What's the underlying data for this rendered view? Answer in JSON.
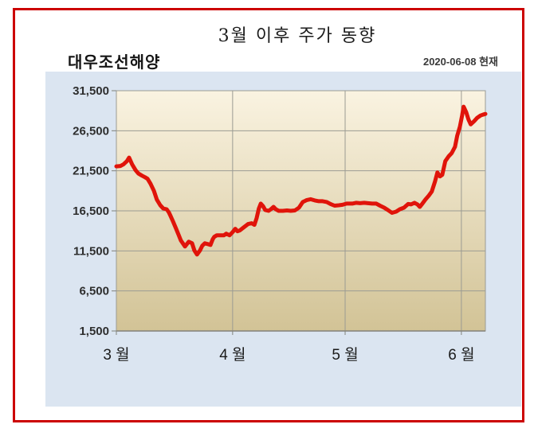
{
  "frame": {
    "border_color": "#cc0000"
  },
  "header": {
    "title": "3월 이후 주가 동향",
    "company": "대우조선해양",
    "as_of": "2020-06-08 현재"
  },
  "chart_data": {
    "type": "line",
    "title": "3월 이후 주가 동향",
    "series_name": "대우조선해양",
    "as_of_label": "2020-06-08 현재",
    "grid": true,
    "legend": "none",
    "colors": {
      "line": "#e0140a",
      "panel_bg": "#dbe5f1",
      "plot_bg_top": "#faf3e1",
      "plot_bg_bottom": "#d2c396",
      "gridline": "#9b9b93",
      "axis": "#82827a",
      "tick_text": "#2e2e2e",
      "month_text": "#1a1a1a"
    },
    "y_axis": {
      "min": 1500,
      "max": 31500,
      "tick_step": 5000,
      "ticks": [
        31500,
        26500,
        21500,
        16500,
        11500,
        6500,
        1500
      ]
    },
    "x_axis": {
      "unit": "days since 2020-03-01",
      "min": 0,
      "max": 98.4,
      "month_ticks": [
        {
          "label": "3 월",
          "day": 0
        },
        {
          "label": "4 월",
          "day": 31
        },
        {
          "label": "5 월",
          "day": 61
        },
        {
          "label": "6 월",
          "day": 92
        }
      ],
      "gridline_days": [
        31,
        61,
        92
      ]
    },
    "points": [
      [
        0,
        22050
      ],
      [
        1.1,
        22100
      ],
      [
        1.9,
        22300
      ],
      [
        2.8,
        22700
      ],
      [
        3.4,
        23150
      ],
      [
        4.2,
        22300
      ],
      [
        5.1,
        21600
      ],
      [
        5.9,
        21150
      ],
      [
        6.8,
        20900
      ],
      [
        7.6,
        20700
      ],
      [
        8.3,
        20500
      ],
      [
        9.1,
        19900
      ],
      [
        10,
        19000
      ],
      [
        10.8,
        17900
      ],
      [
        11.7,
        17200
      ],
      [
        12.5,
        16800
      ],
      [
        13.4,
        16700
      ],
      [
        14,
        16300
      ],
      [
        14.4,
        15900
      ],
      [
        15.1,
        15200
      ],
      [
        15.9,
        14300
      ],
      [
        16.6,
        13500
      ],
      [
        17.2,
        12800
      ],
      [
        18.3,
        12050
      ],
      [
        19.3,
        12650
      ],
      [
        20.2,
        12450
      ],
      [
        20.8,
        11550
      ],
      [
        21.5,
        11050
      ],
      [
        22.3,
        11550
      ],
      [
        22.9,
        12150
      ],
      [
        23.6,
        12450
      ],
      [
        24.4,
        12350
      ],
      [
        25.1,
        12250
      ],
      [
        25.7,
        12950
      ],
      [
        26.1,
        13250
      ],
      [
        26.8,
        13450
      ],
      [
        27.8,
        13450
      ],
      [
        28.7,
        13450
      ],
      [
        29.3,
        13650
      ],
      [
        30.2,
        13450
      ],
      [
        31,
        13850
      ],
      [
        31.7,
        14250
      ],
      [
        32.3,
        13950
      ],
      [
        32.9,
        14050
      ],
      [
        34,
        14450
      ],
      [
        35.1,
        14850
      ],
      [
        36.1,
        14950
      ],
      [
        36.8,
        14750
      ],
      [
        37.4,
        15600
      ],
      [
        38,
        16800
      ],
      [
        38.5,
        17400
      ],
      [
        39.1,
        17100
      ],
      [
        39.7,
        16600
      ],
      [
        40.6,
        16500
      ],
      [
        41.2,
        16700
      ],
      [
        41.9,
        17000
      ],
      [
        42.5,
        16700
      ],
      [
        43.3,
        16500
      ],
      [
        44.4,
        16500
      ],
      [
        45.5,
        16550
      ],
      [
        46.5,
        16500
      ],
      [
        47.6,
        16550
      ],
      [
        48.7,
        16900
      ],
      [
        49.7,
        17600
      ],
      [
        50.8,
        17850
      ],
      [
        51.8,
        17950
      ],
      [
        52.9,
        17800
      ],
      [
        54,
        17700
      ],
      [
        55,
        17700
      ],
      [
        56.1,
        17600
      ],
      [
        57.1,
        17350
      ],
      [
        58.2,
        17150
      ],
      [
        59.3,
        17200
      ],
      [
        60.3,
        17250
      ],
      [
        61.4,
        17400
      ],
      [
        62.9,
        17400
      ],
      [
        63.9,
        17500
      ],
      [
        65,
        17450
      ],
      [
        66.1,
        17500
      ],
      [
        67.1,
        17450
      ],
      [
        68.2,
        17400
      ],
      [
        69.3,
        17400
      ],
      [
        70.3,
        17150
      ],
      [
        71.4,
        16900
      ],
      [
        72.4,
        16600
      ],
      [
        73.5,
        16250
      ],
      [
        74.6,
        16400
      ],
      [
        75.6,
        16700
      ],
      [
        76.7,
        16900
      ],
      [
        77.8,
        17350
      ],
      [
        78.6,
        17300
      ],
      [
        79.5,
        17500
      ],
      [
        80.3,
        17300
      ],
      [
        80.9,
        17000
      ],
      [
        81.6,
        17400
      ],
      [
        82.4,
        17900
      ],
      [
        83.3,
        18400
      ],
      [
        84.1,
        18900
      ],
      [
        85,
        20200
      ],
      [
        85.6,
        21300
      ],
      [
        86.3,
        20800
      ],
      [
        86.9,
        21000
      ],
      [
        87.7,
        22700
      ],
      [
        88.6,
        23300
      ],
      [
        89.4,
        23700
      ],
      [
        90.3,
        24500
      ],
      [
        90.9,
        25900
      ],
      [
        91.6,
        27000
      ],
      [
        92.2,
        28400
      ],
      [
        92.6,
        29500
      ],
      [
        93.3,
        28800
      ],
      [
        93.9,
        27900
      ],
      [
        94.5,
        27300
      ],
      [
        95.4,
        27700
      ],
      [
        96.2,
        28100
      ],
      [
        97.1,
        28400
      ],
      [
        97.7,
        28500
      ],
      [
        98.4,
        28600
      ]
    ]
  }
}
